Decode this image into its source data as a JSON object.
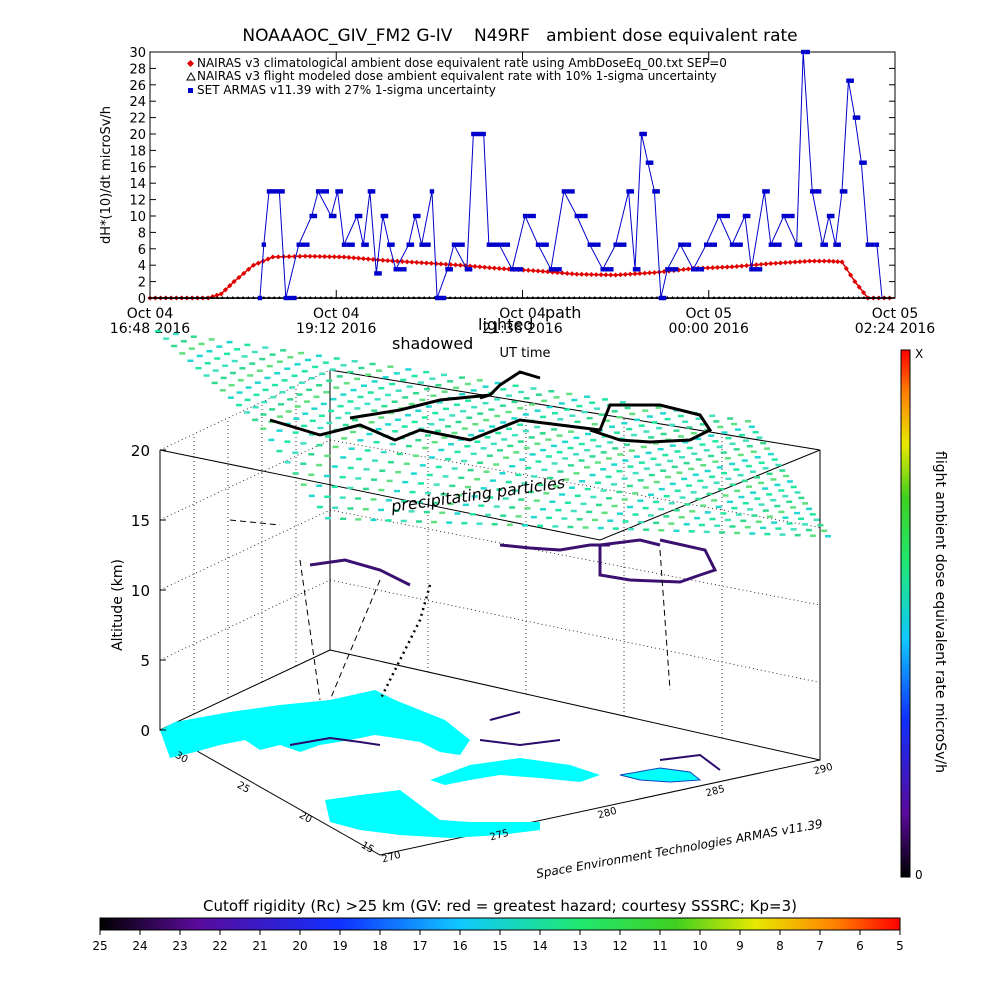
{
  "top_chart": {
    "title": "NOAAAOC_GIV_FM2 G-IV    N49RF   ambient dose equivalent rate",
    "ylabel": "dH*(10)/dt microSv/h",
    "xlabel": "UT time",
    "legend": [
      {
        "text": "NAIRAS v3 climatological ambient dose equivalent rate using AmbDoseEq_00.txt SEP=0",
        "color": "#e00000",
        "marker": "diamond"
      },
      {
        "text": "NAIRAS v3 flight modeled dose ambient equivalent rate with 10% 1-sigma uncertainty",
        "color": "#000000",
        "marker": "triangle"
      },
      {
        "text": "SET ARMAS v11.39 with 27% 1-sigma uncertainty",
        "color": "#0000cc",
        "marker": "square"
      }
    ],
    "x_ticks": [
      {
        "day": "Oct 04",
        "time": "16:48 2016"
      },
      {
        "day": "Oct 04",
        "time": "19:12 2016"
      },
      {
        "day": "Oct 04",
        "time": "21:36 2016"
      },
      {
        "day": "Oct 05",
        "time": "00:00 2016"
      },
      {
        "day": "Oct 05",
        "time": "02:24 2016"
      }
    ],
    "y_ticks": [
      "0",
      "2",
      "4",
      "6",
      "8",
      "10",
      "12",
      "14",
      "16",
      "18",
      "20",
      "22",
      "24",
      "26",
      "28",
      "30"
    ]
  },
  "chart_data": {
    "type": "line",
    "x_unit": "minutes after Oct 04 16:48 2016 UT",
    "xlim": [
      0,
      576
    ],
    "ylim": [
      0,
      30
    ],
    "series": [
      {
        "name": "NAIRAS v3 climatological ambient dose equivalent rate using AmbDoseEq_00.txt SEP=0",
        "color": "#e00000",
        "points": [
          [
            0,
            0
          ],
          [
            45,
            0
          ],
          [
            55,
            0.5
          ],
          [
            65,
            2
          ],
          [
            80,
            4
          ],
          [
            95,
            5
          ],
          [
            120,
            5.1
          ],
          [
            150,
            5
          ],
          [
            180,
            4.6
          ],
          [
            210,
            4.3
          ],
          [
            240,
            4
          ],
          [
            270,
            3.6
          ],
          [
            300,
            3.3
          ],
          [
            330,
            2.9
          ],
          [
            360,
            2.8
          ],
          [
            390,
            3.1
          ],
          [
            420,
            3.6
          ],
          [
            450,
            3.8
          ],
          [
            480,
            4.2
          ],
          [
            510,
            4.5
          ],
          [
            525,
            4.5
          ],
          [
            535,
            4.4
          ],
          [
            545,
            2
          ],
          [
            555,
            0
          ],
          [
            576,
            0
          ]
        ]
      },
      {
        "name": "NAIRAS v3 flight modeled dose ambient equivalent rate with 10% 1-sigma uncertainty",
        "color": "#000000",
        "points": [
          [
            0,
            0
          ],
          [
            576,
            0
          ]
        ]
      },
      {
        "name": "SET ARMAS v11.39 with 27% 1-sigma uncertainty",
        "color": "#0000cc",
        "points": [
          [
            85,
            0
          ],
          [
            88,
            6.5
          ],
          [
            92,
            13
          ],
          [
            100,
            13
          ],
          [
            105,
            0
          ],
          [
            115,
            6.5
          ],
          [
            125,
            10
          ],
          [
            130,
            13
          ],
          [
            140,
            10
          ],
          [
            145,
            13
          ],
          [
            150,
            6.5
          ],
          [
            160,
            10
          ],
          [
            165,
            6.5
          ],
          [
            170,
            13
          ],
          [
            175,
            3
          ],
          [
            180,
            10
          ],
          [
            185,
            6.5
          ],
          [
            190,
            3.5
          ],
          [
            200,
            6.5
          ],
          [
            205,
            10
          ],
          [
            210,
            6.5
          ],
          [
            218,
            13
          ],
          [
            222,
            0
          ],
          [
            230,
            3.5
          ],
          [
            235,
            6.5
          ],
          [
            245,
            3.5
          ],
          [
            250,
            20
          ],
          [
            258,
            20
          ],
          [
            262,
            6.5
          ],
          [
            270,
            6.5
          ],
          [
            280,
            3.5
          ],
          [
            290,
            10
          ],
          [
            300,
            6.5
          ],
          [
            310,
            3.5
          ],
          [
            320,
            13
          ],
          [
            330,
            10
          ],
          [
            340,
            6.5
          ],
          [
            350,
            3.5
          ],
          [
            360,
            6.5
          ],
          [
            370,
            13
          ],
          [
            375,
            3.5
          ],
          [
            380,
            20
          ],
          [
            385,
            16.5
          ],
          [
            390,
            13
          ],
          [
            395,
            0
          ],
          [
            400,
            3.5
          ],
          [
            410,
            6.5
          ],
          [
            420,
            3.5
          ],
          [
            430,
            6.5
          ],
          [
            440,
            10
          ],
          [
            450,
            6.5
          ],
          [
            460,
            10
          ],
          [
            465,
            3.5
          ],
          [
            475,
            13
          ],
          [
            480,
            6.5
          ],
          [
            490,
            10
          ],
          [
            500,
            6.5
          ],
          [
            505,
            30
          ],
          [
            512,
            13
          ],
          [
            520,
            6.5
          ],
          [
            525,
            10
          ],
          [
            530,
            6.5
          ],
          [
            535,
            13
          ],
          [
            540,
            26.5
          ],
          [
            545,
            22
          ],
          [
            550,
            16.5
          ],
          [
            555,
            6.5
          ],
          [
            562,
            6.5
          ],
          [
            566,
            0
          ]
        ]
      }
    ]
  },
  "scene_3d": {
    "labels": {
      "shadowed": "shadowed",
      "lighted": "lighted",
      "path": "path",
      "precipitating": "precipitating particles",
      "z_axis": "Altitude (km)",
      "credit": "Space Environment Technologies ARMAS v11.39"
    },
    "z_ticks": [
      "0",
      "5",
      "10",
      "15",
      "20"
    ],
    "lat_ticks": [
      "30",
      "25",
      "20",
      "15"
    ],
    "lon_ticks": [
      "270",
      "275",
      "280",
      "285",
      "290"
    ]
  },
  "right_colorbar": {
    "label": "flight ambient dose equivalent rate microSv/h",
    "max_label": "X",
    "min_label": "0"
  },
  "bottom_colorbar": {
    "title": "Cutoff rigidity (Rc) >25 km (GV: red = greatest hazard; courtesy SSSRC; Kp=3)",
    "ticks": [
      "25",
      "24",
      "23",
      "22",
      "21",
      "20",
      "19",
      "18",
      "17",
      "16",
      "15",
      "14",
      "13",
      "12",
      "11",
      "10",
      "9",
      "8",
      "7",
      "6",
      "5"
    ]
  }
}
